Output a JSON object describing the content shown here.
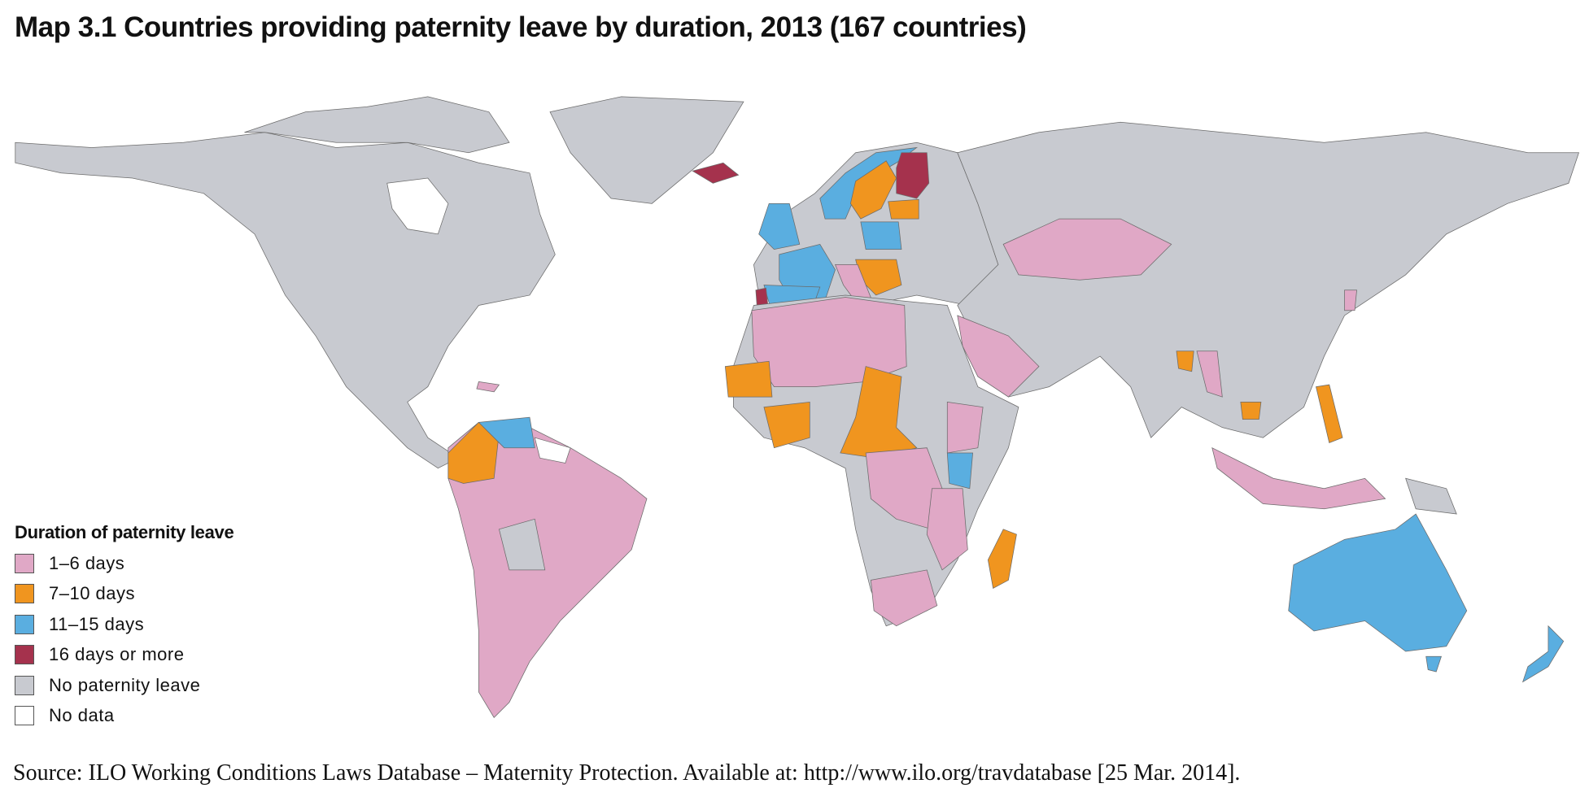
{
  "title": "Map 3.1  Countries providing paternity leave by duration, 2013 (167 countries)",
  "legend": {
    "title": "Duration of paternity leave",
    "items": [
      {
        "label": "1–6 days",
        "color": "#e0a8c6"
      },
      {
        "label": "7–10 days",
        "color": "#f0951f"
      },
      {
        "label": "11–15 days",
        "color": "#5aaee0"
      },
      {
        "label": "16 days or more",
        "color": "#a5324d"
      },
      {
        "label": "No paternity leave",
        "color": "#c8cad0"
      },
      {
        "label": "No data",
        "color": "#ffffff"
      }
    ]
  },
  "source": "Source: ILO Working Conditions Laws Database – Maternity Protection. Available at: http://www.ilo.org/travdatabase [25 Mar. 2014]."
}
